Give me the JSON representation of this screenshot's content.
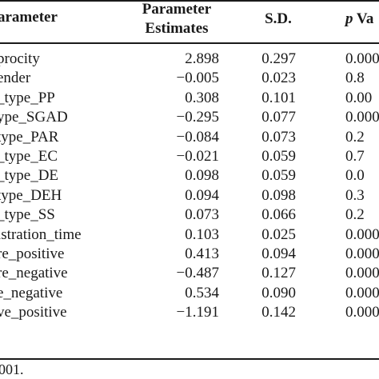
{
  "table": {
    "headers": {
      "parameter": "arameter",
      "estimates_line1": "Parameter",
      "estimates_line2": "Estimates",
      "sd": "S.D.",
      "p_letter": "p",
      "p_rest": " Va"
    },
    "rows": [
      {
        "name": "procity",
        "estimate": "2.898",
        "sd": "0.297",
        "p": "0.000"
      },
      {
        "name": "ender",
        "estimate": "−0.005",
        "sd": "0.023",
        "p": "0.8"
      },
      {
        "name": "_type_PP",
        "estimate": "0.308",
        "sd": "0.101",
        "p": "0.00"
      },
      {
        "name": "ype_SGAD",
        "estimate": "−0.295",
        "sd": "0.077",
        "p": "0.000"
      },
      {
        "name": "type_PAR",
        "estimate": "−0.084",
        "sd": "0.073",
        "p": "0.2"
      },
      {
        "name": "_type_EC",
        "estimate": "−0.021",
        "sd": "0.059",
        "p": "0.7"
      },
      {
        "name": "_type_DE",
        "estimate": "0.098",
        "sd": "0.059",
        "p": "0.0"
      },
      {
        "name": "type_DEH",
        "estimate": "0.094",
        "sd": "0.098",
        "p": "0.3"
      },
      {
        "name": "_type_SS",
        "estimate": "0.073",
        "sd": "0.066",
        "p": "0.2"
      },
      {
        "name": "istration_time",
        "estimate": "0.103",
        "sd": "0.025",
        "p": "0.000"
      },
      {
        "name": "re_positive",
        "estimate": "0.413",
        "sd": "0.094",
        "p": "0.000"
      },
      {
        "name": "re_negative",
        "estimate": "−0.487",
        "sd": "0.127",
        "p": "0.000"
      },
      {
        "name": "e_negative",
        "estimate": "0.534",
        "sd": "0.090",
        "p": "0.000"
      },
      {
        "name": "ve_positive",
        "estimate": "−1.191",
        "sd": "0.142",
        "p": "0.000"
      }
    ],
    "footnote": "001."
  }
}
